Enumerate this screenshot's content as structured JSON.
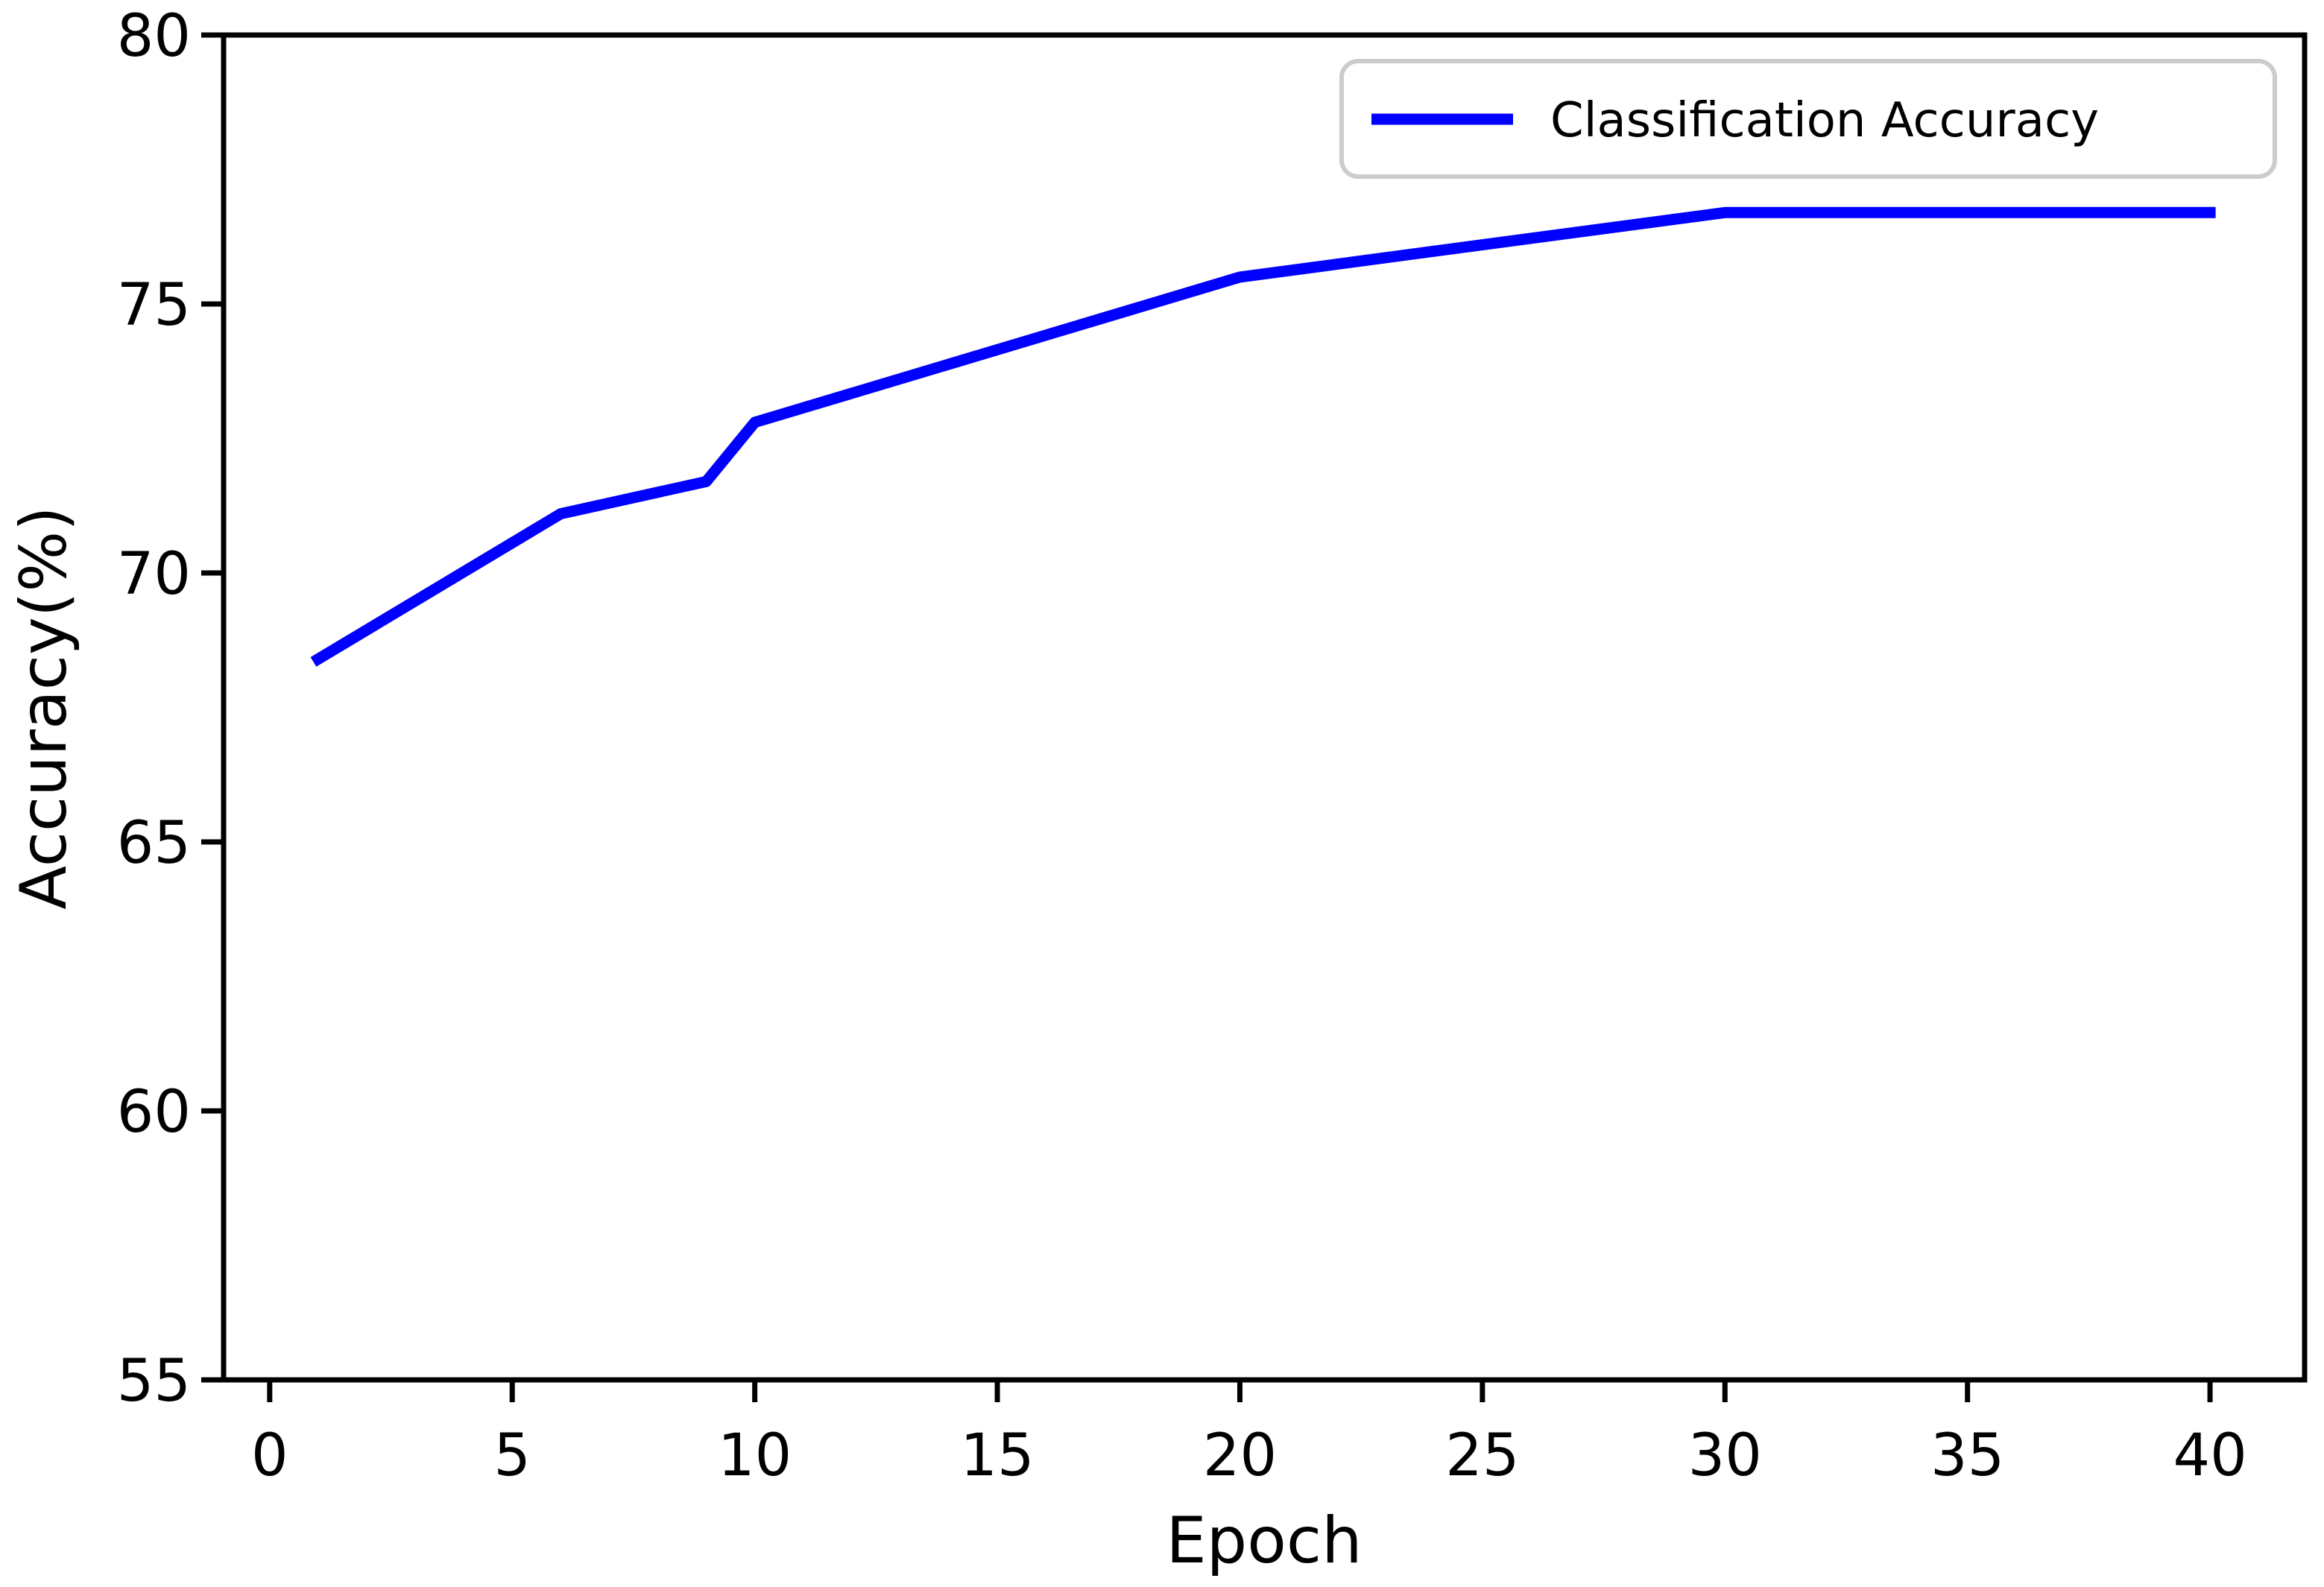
{
  "style": {
    "background_color": "#ffffff",
    "axis_color": "#000000",
    "text_color": "#000000",
    "legend_edge_color": "#cccccc",
    "legend_face_color": "#ffffff"
  },
  "chart_data": {
    "type": "line",
    "title": "",
    "xlabel": "Epoch",
    "ylabel": "Accuracy(%)",
    "grid": false,
    "legend_position": "upper right",
    "xlim": [
      -0.95,
      41.95
    ],
    "ylim": [
      55,
      80
    ],
    "xticks": [
      0,
      5,
      10,
      15,
      20,
      25,
      30,
      35,
      40
    ],
    "yticks": [
      55,
      60,
      65,
      70,
      75,
      80
    ],
    "series": [
      {
        "name": "Classification Accuracy",
        "color": "#0000ff",
        "line_width": 15,
        "x": [
          1,
          6,
          9,
          10,
          20,
          30,
          40
        ],
        "y": [
          68.4,
          71.1,
          71.7,
          72.8,
          75.5,
          76.7,
          76.7
        ]
      }
    ]
  }
}
